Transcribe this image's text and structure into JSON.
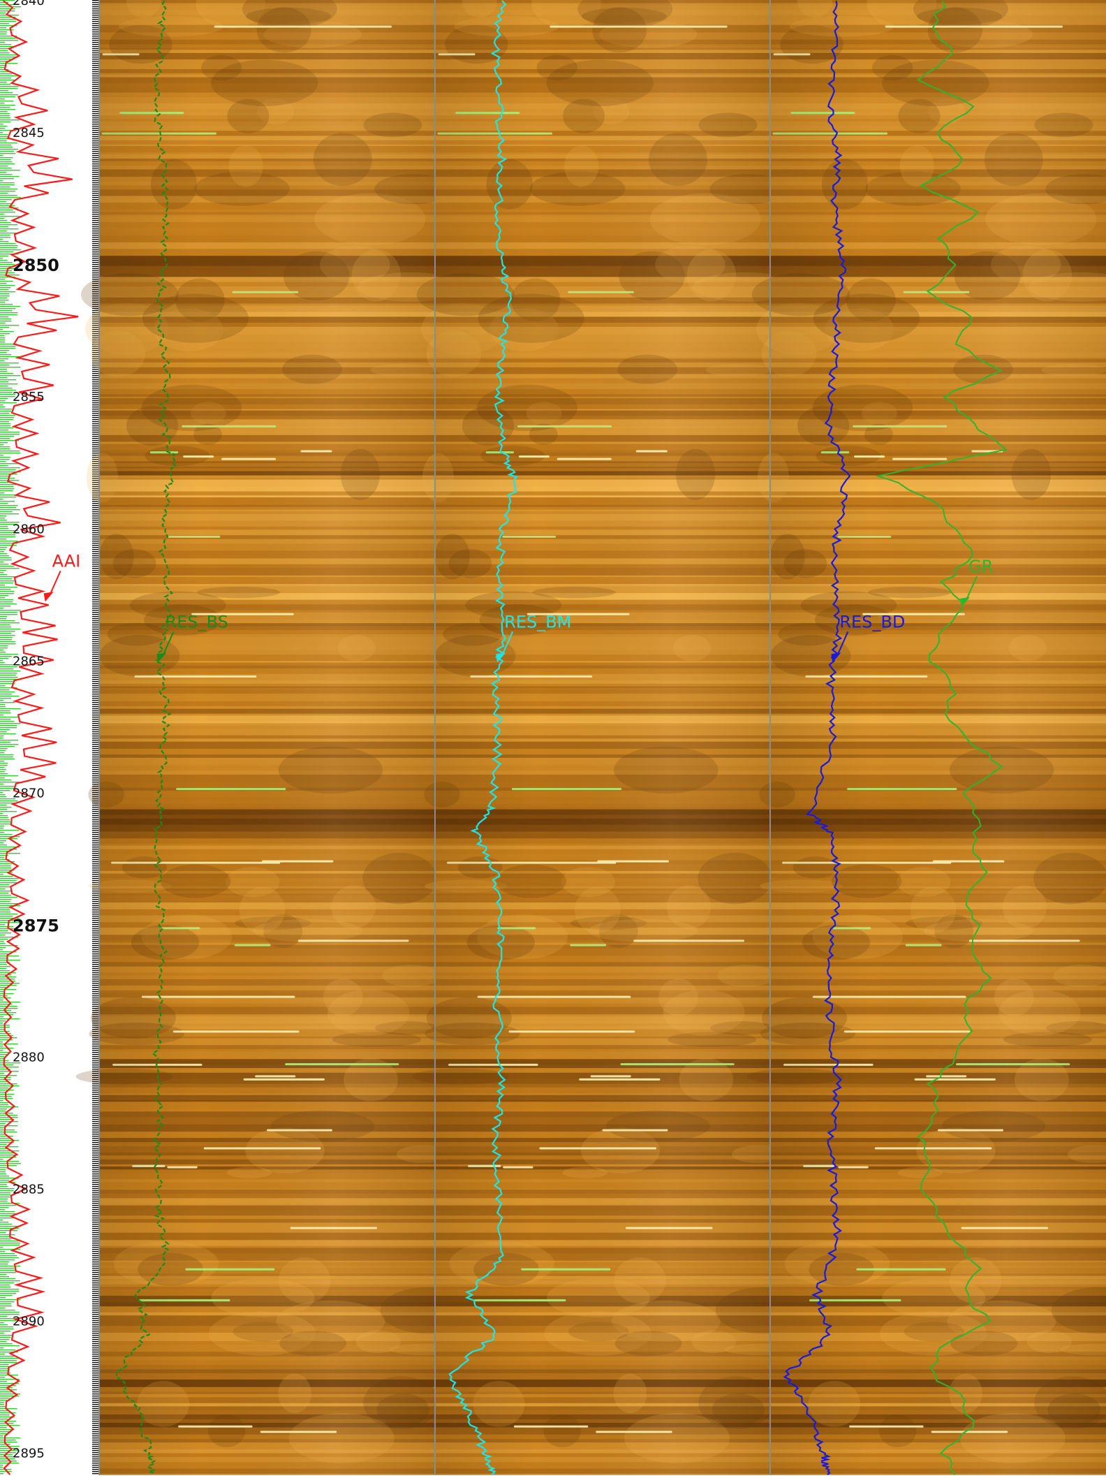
{
  "chart_data": {
    "type": "line",
    "title": "",
    "xlabel": "",
    "ylabel": "",
    "depth_range": [
      2840,
      2895.8
    ],
    "depth_ticks": [
      2840,
      2845,
      2850,
      2855,
      2860,
      2865,
      2870,
      2875,
      2880,
      2885,
      2890,
      2895
    ],
    "major_depth_ticks": [
      2850,
      2875
    ],
    "grid": false,
    "image_tracks": 3,
    "colors": {
      "image_dark": "#6a3a08",
      "image_mid": "#c47c1a",
      "image_light": "#f3b54a",
      "image_bright": "#fff3b0",
      "track_divider": "#8c8c8c",
      "axis_strip_green": "#33cc33",
      "axis_strip_black": "#111111"
    },
    "series": [
      {
        "name": "AAI",
        "color": "#ff1a1a",
        "track": 0,
        "depths": [
          2840,
          2841.3,
          2842.6,
          2843.9,
          2845.2,
          2846.5,
          2847.8,
          2849.1,
          2850.4,
          2851.7,
          2853,
          2854.3,
          2855.6,
          2856.9,
          2858.2,
          2859.5,
          2860.8,
          2862.1,
          2863.4,
          2864.7,
          2866,
          2867.3,
          2868.6,
          2869.9,
          2871.2,
          2872.5,
          2873.8,
          2875.1,
          2876.4,
          2877.7,
          2879,
          2880.3,
          2881.6,
          2882.9,
          2884.2,
          2885.5,
          2886.8,
          2888.1,
          2889.4,
          2890.7,
          2892,
          2893.3,
          2894.6,
          2895.8
        ],
        "values": [
          0.08,
          0.3,
          0.12,
          0.55,
          0.2,
          0.85,
          0.25,
          0.4,
          0.15,
          0.9,
          0.35,
          0.6,
          0.3,
          0.42,
          0.2,
          0.7,
          0.25,
          0.4,
          0.55,
          0.6,
          0.3,
          0.5,
          0.62,
          0.35,
          0.28,
          0.15,
          0.3,
          0.2,
          0.18,
          0.1,
          0.12,
          0.1,
          0.15,
          0.12,
          0.2,
          0.3,
          0.25,
          0.4,
          0.45,
          0.3,
          0.2,
          0.15,
          0.12,
          0.1
        ]
      },
      {
        "name": "RES_BS",
        "color": "#1a8c1a",
        "track": 1,
        "depths": [
          2840,
          2842,
          2844,
          2846,
          2848,
          2850,
          2852,
          2854,
          2856,
          2857.5,
          2859,
          2861,
          2863,
          2865,
          2867,
          2869,
          2870.5,
          2872,
          2874,
          2876,
          2878,
          2880,
          2882,
          2884,
          2886,
          2887.5,
          2889,
          2890.5,
          2892,
          2893.5,
          2895,
          2895.8
        ],
        "values": [
          0.19,
          0.18,
          0.17,
          0.19,
          0.2,
          0.19,
          0.18,
          0.2,
          0.19,
          0.22,
          0.2,
          0.19,
          0.21,
          0.18,
          0.2,
          0.19,
          0.18,
          0.17,
          0.18,
          0.19,
          0.18,
          0.17,
          0.18,
          0.17,
          0.18,
          0.2,
          0.12,
          0.14,
          0.05,
          0.12,
          0.15,
          0.16
        ]
      },
      {
        "name": "RES_BM",
        "color": "#1ee6e6",
        "track": 2,
        "depths": [
          2840,
          2842,
          2844,
          2846,
          2848,
          2850,
          2851.5,
          2853,
          2855,
          2857,
          2858.2,
          2860,
          2862,
          2864,
          2866,
          2868,
          2870.5,
          2871.5,
          2873,
          2875,
          2877,
          2879,
          2881,
          2883,
          2885,
          2887.5,
          2889,
          2890.5,
          2892,
          2893.5,
          2895,
          2895.8
        ],
        "values": [
          0.2,
          0.18,
          0.19,
          0.2,
          0.19,
          0.2,
          0.22,
          0.2,
          0.19,
          0.2,
          0.24,
          0.2,
          0.19,
          0.2,
          0.18,
          0.19,
          0.17,
          0.12,
          0.18,
          0.2,
          0.18,
          0.19,
          0.2,
          0.18,
          0.19,
          0.2,
          0.1,
          0.18,
          0.04,
          0.1,
          0.15,
          0.17
        ]
      },
      {
        "name": "RES_BD",
        "color": "#1a1ad9",
        "track": 3,
        "depths": [
          2840,
          2842,
          2844,
          2846,
          2848,
          2850,
          2852,
          2854,
          2856,
          2858,
          2860,
          2862,
          2864,
          2866,
          2868,
          2870.8,
          2871.5,
          2873,
          2875,
          2877,
          2879,
          2881,
          2883,
          2885,
          2887,
          2889,
          2890.5,
          2892,
          2893.5,
          2895,
          2895.8
        ],
        "values": [
          0.2,
          0.19,
          0.18,
          0.2,
          0.19,
          0.22,
          0.2,
          0.19,
          0.17,
          0.23,
          0.2,
          0.19,
          0.2,
          0.18,
          0.19,
          0.12,
          0.18,
          0.2,
          0.19,
          0.17,
          0.18,
          0.2,
          0.18,
          0.19,
          0.2,
          0.14,
          0.18,
          0.05,
          0.12,
          0.16,
          0.17
        ]
      },
      {
        "name": "GR",
        "color": "#2db52d",
        "track": 3,
        "depths": [
          2840,
          2841,
          2842,
          2843,
          2844,
          2845,
          2846,
          2847,
          2848,
          2849,
          2850,
          2851,
          2852,
          2853,
          2854,
          2855,
          2856,
          2857,
          2858,
          2859,
          2860,
          2861,
          2862,
          2863,
          2864,
          2865,
          2866,
          2867,
          2868,
          2869,
          2870,
          2871,
          2872,
          2873,
          2874,
          2875,
          2876,
          2877,
          2878,
          2879,
          2880,
          2881,
          2882,
          2883,
          2884,
          2885,
          2886,
          2887,
          2888,
          2889,
          2890,
          2891,
          2892,
          2893,
          2894,
          2895,
          2895.8
        ],
        "values": [
          0.52,
          0.48,
          0.55,
          0.45,
          0.6,
          0.5,
          0.58,
          0.45,
          0.62,
          0.5,
          0.55,
          0.47,
          0.6,
          0.55,
          0.68,
          0.52,
          0.6,
          0.7,
          0.33,
          0.5,
          0.55,
          0.6,
          0.52,
          0.58,
          0.5,
          0.48,
          0.55,
          0.52,
          0.6,
          0.68,
          0.58,
          0.62,
          0.6,
          0.65,
          0.58,
          0.62,
          0.6,
          0.65,
          0.58,
          0.6,
          0.55,
          0.48,
          0.5,
          0.45,
          0.48,
          0.45,
          0.5,
          0.55,
          0.62,
          0.58,
          0.65,
          0.5,
          0.48,
          0.58,
          0.6,
          0.52,
          0.55
        ]
      }
    ],
    "annotations": [
      {
        "text": "AAI",
        "series": "AAI",
        "depth": 2862.7
      },
      {
        "text": "RES_BS",
        "series": "RES_BS",
        "depth": 2865
      },
      {
        "text": "RES_BM",
        "series": "RES_BM",
        "depth": 2865
      },
      {
        "text": "RES_BD",
        "series": "RES_BD",
        "depth": 2865
      },
      {
        "text": "GR",
        "series": "GR",
        "depth": 2862.9
      }
    ]
  }
}
